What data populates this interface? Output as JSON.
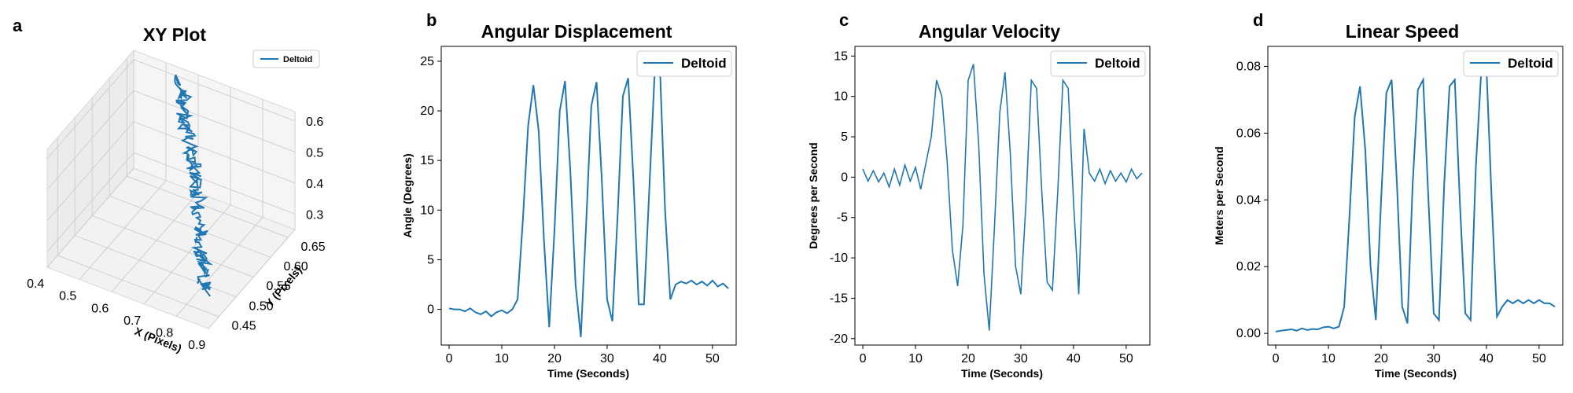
{
  "chart_data": [
    {
      "type": "line3d",
      "panel": "a",
      "title": "XY Plot",
      "xlabel": "X (Pixels)",
      "ylabel": "Y (Pixels)",
      "zlabel": "",
      "xlim": [
        0.4,
        0.9
      ],
      "ylim": [
        0.42,
        0.67
      ],
      "zlim": [
        0.25,
        0.63
      ],
      "xticks": [
        "0.4",
        "0.5",
        "0.6",
        "0.7",
        "0.8",
        "0.9"
      ],
      "yticks": [
        "0.45",
        "0.50",
        "0.55",
        "0.60",
        "0.65"
      ],
      "zticks": [
        "0.3",
        "0.4",
        "0.5",
        "0.6"
      ],
      "color": "#1f77b4",
      "legend": [
        "Deltoid"
      ],
      "legend_position": "upper right",
      "grid": true,
      "series": [
        {
          "name": "Deltoid",
          "path": [
            [
              0.555,
              0.655,
              0.62
            ],
            [
              0.57,
              0.648,
              0.6
            ],
            [
              0.585,
              0.64,
              0.575
            ],
            [
              0.602,
              0.63,
              0.545
            ],
            [
              0.62,
              0.62,
              0.515
            ],
            [
              0.64,
              0.61,
              0.485
            ],
            [
              0.66,
              0.6,
              0.455
            ],
            [
              0.68,
              0.588,
              0.425
            ],
            [
              0.7,
              0.575,
              0.395
            ],
            [
              0.72,
              0.56,
              0.365
            ],
            [
              0.74,
              0.545,
              0.335
            ],
            [
              0.76,
              0.53,
              0.305
            ],
            [
              0.78,
              0.515,
              0.28
            ],
            [
              0.8,
              0.5,
              0.26
            ],
            [
              0.815,
              0.49,
              0.25
            ]
          ]
        }
      ]
    },
    {
      "type": "line",
      "panel": "b",
      "title": "Angular Displacement",
      "xlabel": "Time (Seconds)",
      "ylabel": "Angle (Degrees)",
      "xlim": [
        -1.5,
        54.5
      ],
      "ylim": [
        -3.6,
        26.5
      ],
      "xticks": [
        0,
        10,
        20,
        30,
        40,
        50
      ],
      "yticks": [
        0,
        5,
        10,
        15,
        20,
        25
      ],
      "legend": [
        "Deltoid"
      ],
      "legend_position": "upper right",
      "grid": false,
      "series": [
        {
          "name": "Deltoid",
          "x": [
            0,
            1,
            2,
            3,
            4,
            5,
            6,
            7,
            8,
            9,
            10,
            11,
            12,
            13,
            14,
            15,
            16,
            17,
            18,
            19,
            20,
            21,
            22,
            23,
            24,
            25,
            26,
            27,
            28,
            29,
            30,
            31,
            32,
            33,
            34,
            35,
            36,
            37,
            38,
            39,
            40,
            41,
            42,
            43,
            44,
            45,
            46,
            47,
            48,
            49,
            50,
            51,
            52,
            53
          ],
          "y": [
            0.1,
            0.0,
            0.0,
            -0.2,
            0.1,
            -0.3,
            -0.5,
            -0.2,
            -0.7,
            -0.3,
            -0.1,
            -0.4,
            0.0,
            1.0,
            9.0,
            18.5,
            22.6,
            18.0,
            7.0,
            -1.8,
            8.0,
            20.0,
            23.0,
            14.0,
            2.5,
            -2.8,
            8.5,
            20.5,
            22.9,
            13.0,
            1.0,
            -1.2,
            9.5,
            21.5,
            23.3,
            13.0,
            0.5,
            0.5,
            12.0,
            23.5,
            24.8,
            10.0,
            1.0,
            2.5,
            2.8,
            2.6,
            2.9,
            2.5,
            2.8,
            2.4,
            2.9,
            2.3,
            2.6,
            2.1
          ]
        }
      ]
    },
    {
      "type": "line",
      "panel": "c",
      "title": "Angular Velocity",
      "xlabel": "Time (Seconds)",
      "ylabel": "Degrees per Second",
      "xlim": [
        -1.5,
        54.5
      ],
      "ylim": [
        -20.8,
        16.2
      ],
      "xticks": [
        0,
        10,
        20,
        30,
        40,
        50
      ],
      "yticks": [
        -20,
        -15,
        -10,
        -5,
        0,
        5,
        10,
        15
      ],
      "legend": [
        "Deltoid"
      ],
      "legend_position": "upper right",
      "grid": false,
      "series": [
        {
          "name": "Deltoid",
          "x": [
            0,
            1,
            2,
            3,
            4,
            5,
            6,
            7,
            8,
            9,
            10,
            11,
            12,
            13,
            14,
            15,
            16,
            17,
            18,
            19,
            20,
            21,
            22,
            23,
            24,
            25,
            26,
            27,
            28,
            29,
            30,
            31,
            32,
            33,
            34,
            35,
            36,
            37,
            38,
            39,
            40,
            41,
            42,
            43,
            44,
            45,
            46,
            47,
            48,
            49,
            50,
            51,
            52,
            53
          ],
          "y": [
            1.0,
            -0.5,
            0.8,
            -0.6,
            0.5,
            -1.2,
            1.0,
            -1.0,
            1.5,
            -0.5,
            1.2,
            -1.5,
            1.8,
            5.0,
            12.0,
            10.0,
            2.0,
            -9.0,
            -13.5,
            -6.0,
            12.0,
            14.0,
            4.0,
            -12.0,
            -19.0,
            -6.0,
            8.0,
            13.0,
            3.0,
            -11.0,
            -14.5,
            -3.0,
            12.0,
            11.0,
            -2.0,
            -13.0,
            -14.0,
            -2.0,
            12.0,
            11.0,
            -3.0,
            -14.5,
            6.0,
            0.5,
            -0.5,
            1.0,
            -0.8,
            0.8,
            -0.5,
            0.5,
            -0.6,
            1.0,
            -0.2,
            0.5
          ]
        }
      ]
    },
    {
      "type": "line",
      "panel": "d",
      "title": "Linear Speed",
      "xlabel": "Time (Seconds)",
      "ylabel": "Meters per Second",
      "xlim": [
        -1.5,
        54.5
      ],
      "ylim": [
        -0.0035,
        0.086
      ],
      "xticks": [
        0,
        10,
        20,
        30,
        40,
        50
      ],
      "yticks": [
        "0.00",
        "0.02",
        "0.04",
        "0.06",
        "0.08"
      ],
      "legend": [
        "Deltoid"
      ],
      "legend_position": "upper right",
      "grid": false,
      "series": [
        {
          "name": "Deltoid",
          "x": [
            0,
            1,
            2,
            3,
            4,
            5,
            6,
            7,
            8,
            9,
            10,
            11,
            12,
            13,
            14,
            15,
            16,
            17,
            18,
            19,
            20,
            21,
            22,
            23,
            24,
            25,
            26,
            27,
            28,
            29,
            30,
            31,
            32,
            33,
            34,
            35,
            36,
            37,
            38,
            39,
            40,
            41,
            42,
            43,
            44,
            45,
            46,
            47,
            48,
            49,
            50,
            51,
            52,
            53
          ],
          "y": [
            0.0005,
            0.0008,
            0.001,
            0.0012,
            0.0008,
            0.0015,
            0.001,
            0.0013,
            0.0012,
            0.0018,
            0.002,
            0.0015,
            0.002,
            0.008,
            0.035,
            0.065,
            0.074,
            0.055,
            0.02,
            0.004,
            0.04,
            0.072,
            0.076,
            0.045,
            0.008,
            0.003,
            0.045,
            0.073,
            0.076,
            0.04,
            0.006,
            0.004,
            0.045,
            0.074,
            0.076,
            0.038,
            0.006,
            0.004,
            0.05,
            0.078,
            0.08,
            0.04,
            0.005,
            0.008,
            0.01,
            0.009,
            0.01,
            0.009,
            0.01,
            0.009,
            0.01,
            0.009,
            0.009,
            0.008
          ]
        }
      ]
    }
  ]
}
